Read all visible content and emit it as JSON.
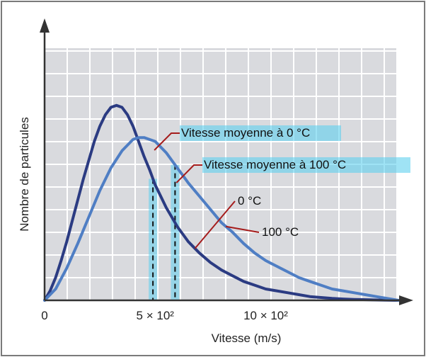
{
  "chart_data": {
    "type": "line",
    "xlabel": "Vitesse (m/s)",
    "ylabel": "Nombre de particules",
    "x_ticks": [
      {
        "value": 0,
        "label": "0"
      },
      {
        "value": 500,
        "label": "5 × 10²"
      },
      {
        "value": 1000,
        "label": "10 × 10²"
      }
    ],
    "xlim": [
      0,
      1600
    ],
    "ylim": [
      0,
      1.25
    ],
    "grid": true,
    "series": [
      {
        "name": "0 °C",
        "color": "#2b3b82",
        "x": [
          0,
          25,
          50,
          75,
          100,
          125,
          150,
          175,
          200,
          225,
          250,
          275,
          300,
          325,
          350,
          375,
          400,
          425,
          450,
          475,
          500,
          525,
          550,
          575,
          600,
          625,
          650,
          700,
          750,
          800,
          850,
          900,
          950,
          1000,
          1050,
          1100,
          1150,
          1200,
          1250,
          1300,
          1350,
          1400,
          1500,
          1600
        ],
        "y": [
          0.0,
          0.05,
          0.12,
          0.21,
          0.31,
          0.42,
          0.53,
          0.64,
          0.74,
          0.84,
          0.92,
          0.98,
          1.02,
          1.03,
          1.02,
          0.98,
          0.92,
          0.84,
          0.76,
          0.69,
          0.61,
          0.55,
          0.49,
          0.44,
          0.39,
          0.35,
          0.31,
          0.25,
          0.2,
          0.16,
          0.13,
          0.1,
          0.08,
          0.06,
          0.05,
          0.04,
          0.03,
          0.02,
          0.015,
          0.01,
          0.007,
          0.005,
          0.002,
          0.0
        ]
      },
      {
        "name": "100 °C",
        "color": "#4f7ec4",
        "x": [
          0,
          50,
          100,
          150,
          200,
          250,
          300,
          350,
          400,
          425,
          450,
          475,
          500,
          525,
          550,
          575,
          600,
          625,
          650,
          700,
          750,
          800,
          850,
          900,
          950,
          1000,
          1050,
          1100,
          1150,
          1200,
          1250,
          1300,
          1350,
          1400,
          1450,
          1500,
          1550,
          1600
        ],
        "y": [
          0.0,
          0.06,
          0.17,
          0.3,
          0.44,
          0.58,
          0.7,
          0.79,
          0.85,
          0.86,
          0.86,
          0.85,
          0.84,
          0.81,
          0.78,
          0.74,
          0.7,
          0.66,
          0.62,
          0.55,
          0.48,
          0.41,
          0.36,
          0.3,
          0.25,
          0.21,
          0.18,
          0.15,
          0.12,
          0.1,
          0.08,
          0.06,
          0.05,
          0.04,
          0.03,
          0.02,
          0.01,
          0.0
        ]
      }
    ],
    "markers": [
      {
        "x": 490,
        "label": "Vitesse moyenne à 0 °C"
      },
      {
        "x": 590,
        "label": "Vitesse moyenne à 100 °C"
      }
    ],
    "curve_labels": [
      {
        "series": 0,
        "text": "0 °C"
      },
      {
        "series": 1,
        "text": "100 °C"
      }
    ]
  }
}
